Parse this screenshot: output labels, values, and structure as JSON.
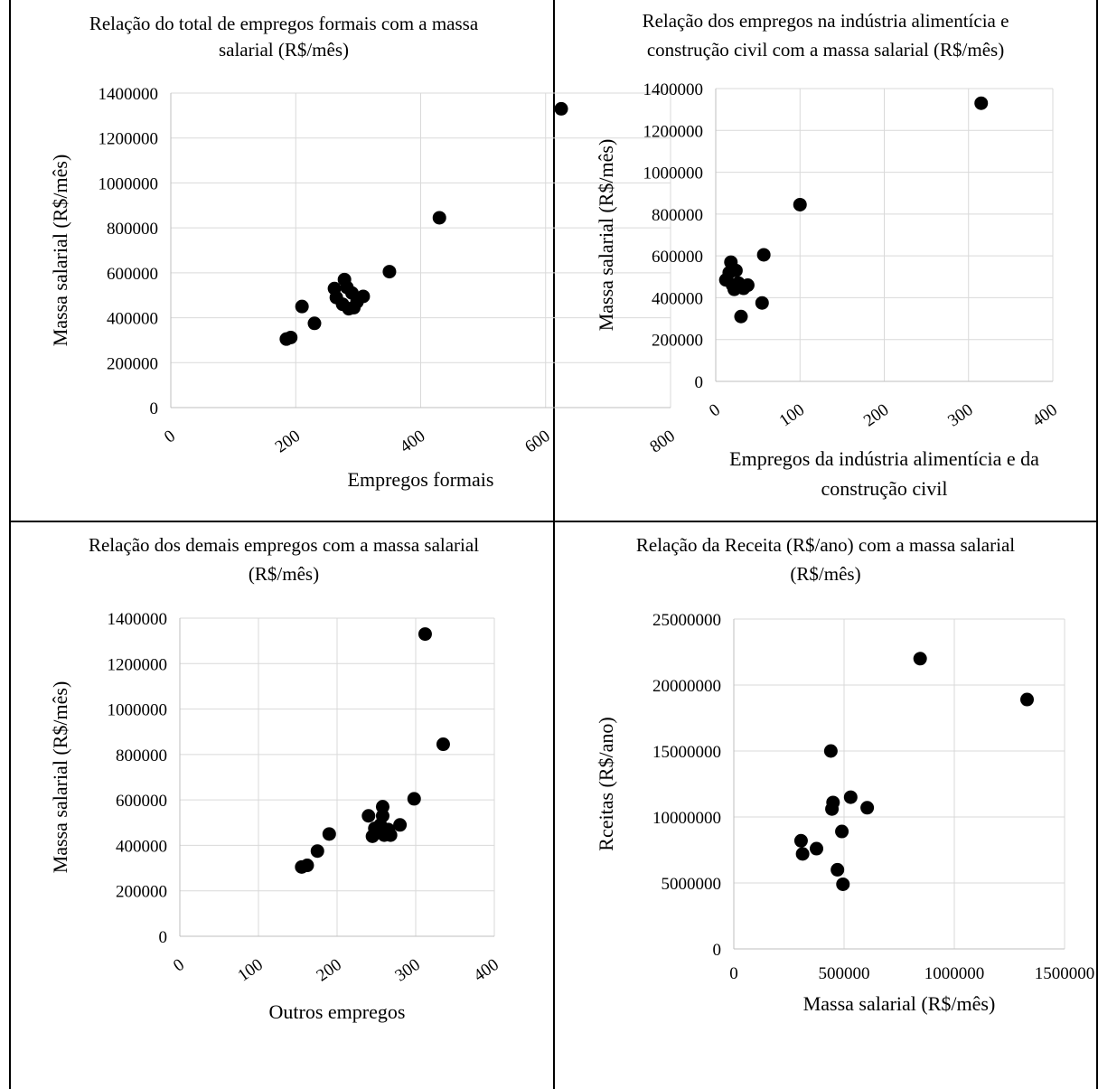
{
  "chart_data": [
    {
      "type": "scatter",
      "title_lines": [
        "Relação do total de empregos formais com a massa",
        "salarial (R$/mês)"
      ],
      "xlabel_lines": [
        "Empregos formais"
      ],
      "ylabel": "Massa salarial (R$/mês)",
      "xlim": [
        0,
        800
      ],
      "ylim": [
        0,
        1400000
      ],
      "xticks": [
        "0",
        "200",
        "400",
        "600",
        "800"
      ],
      "yticks": [
        "0",
        "200000",
        "400000",
        "600000",
        "800000",
        "1000000",
        "1200000",
        "1400000"
      ],
      "x_rotated": true,
      "grid": "vertical and horizontal",
      "points": [
        [
          185,
          305000
        ],
        [
          192,
          312000
        ],
        [
          210,
          450000
        ],
        [
          230,
          375000
        ],
        [
          262,
          530000
        ],
        [
          265,
          490000
        ],
        [
          275,
          460000
        ],
        [
          278,
          570000
        ],
        [
          282,
          535000
        ],
        [
          285,
          440000
        ],
        [
          290,
          510000
        ],
        [
          293,
          445000
        ],
        [
          298,
          470000
        ],
        [
          308,
          495000
        ],
        [
          350,
          605000
        ],
        [
          430,
          845000
        ],
        [
          625,
          1330000
        ]
      ]
    },
    {
      "type": "scatter",
      "title_lines": [
        "Relação dos empregos na indústria alimentícia e",
        "construção civil com a massa salarial (R$/mês)"
      ],
      "xlabel_lines": [
        "Empregos da indústria alimentícia e da",
        "construção civil"
      ],
      "ylabel": "Massa salarial (R$/mês)",
      "xlim": [
        0,
        400
      ],
      "ylim": [
        0,
        1400000
      ],
      "xticks": [
        "0",
        "100",
        "200",
        "300",
        "400"
      ],
      "yticks": [
        "0",
        "200000",
        "400000",
        "600000",
        "800000",
        "1000000",
        "1200000",
        "1400000"
      ],
      "x_rotated": true,
      "grid": "vertical and horizontal",
      "points": [
        [
          12,
          485000
        ],
        [
          16,
          520000
        ],
        [
          18,
          570000
        ],
        [
          20,
          460000
        ],
        [
          22,
          440000
        ],
        [
          24,
          530000
        ],
        [
          27,
          470000
        ],
        [
          30,
          310000
        ],
        [
          33,
          445000
        ],
        [
          38,
          460000
        ],
        [
          55,
          375000
        ],
        [
          57,
          605000
        ],
        [
          100,
          845000
        ],
        [
          315,
          1330000
        ]
      ]
    },
    {
      "type": "scatter",
      "title_lines": [
        "Relação dos demais empregos com a massa salarial",
        "(R$/mês)"
      ],
      "xlabel_lines": [
        "Outros empregos"
      ],
      "ylabel": "Massa salarial (R$/mês)",
      "xlim": [
        0,
        400
      ],
      "ylim": [
        0,
        1400000
      ],
      "xticks": [
        "0",
        "100",
        "200",
        "300",
        "400"
      ],
      "yticks": [
        "0",
        "200000",
        "400000",
        "600000",
        "800000",
        "1000000",
        "1200000",
        "1400000"
      ],
      "x_rotated": true,
      "grid": "vertical and horizontal",
      "points": [
        [
          155,
          305000
        ],
        [
          162,
          312000
        ],
        [
          175,
          375000
        ],
        [
          190,
          450000
        ],
        [
          240,
          530000
        ],
        [
          245,
          440000
        ],
        [
          248,
          475000
        ],
        [
          255,
          490000
        ],
        [
          258,
          570000
        ],
        [
          258,
          530000
        ],
        [
          260,
          445000
        ],
        [
          265,
          470000
        ],
        [
          268,
          445000
        ],
        [
          280,
          490000
        ],
        [
          298,
          605000
        ],
        [
          312,
          1330000
        ],
        [
          335,
          845000
        ]
      ]
    },
    {
      "type": "scatter",
      "title_lines": [
        "Relação da Receita (R$/ano) com a massa salarial",
        "(R$/mês)"
      ],
      "xlabel_lines": [
        "Massa salarial (R$/mês)"
      ],
      "ylabel": "Rceitas (R$/ano)",
      "xlim": [
        0,
        1500000
      ],
      "ylim": [
        0,
        25000000
      ],
      "xticks": [
        "0",
        "500000",
        "1000000",
        "1500000"
      ],
      "yticks": [
        "0",
        "5000000",
        "10000000",
        "15000000",
        "20000000",
        "25000000"
      ],
      "x_rotated": false,
      "grid": "vertical and horizontal",
      "points": [
        [
          305000,
          8200000
        ],
        [
          312000,
          7200000
        ],
        [
          375000,
          7600000
        ],
        [
          440000,
          15000000
        ],
        [
          445000,
          10600000
        ],
        [
          450000,
          11100000
        ],
        [
          470000,
          6000000
        ],
        [
          490000,
          8900000
        ],
        [
          495000,
          4900000
        ],
        [
          530000,
          11500000
        ],
        [
          605000,
          10700000
        ],
        [
          845000,
          22000000
        ],
        [
          1330000,
          18900000
        ]
      ]
    }
  ]
}
